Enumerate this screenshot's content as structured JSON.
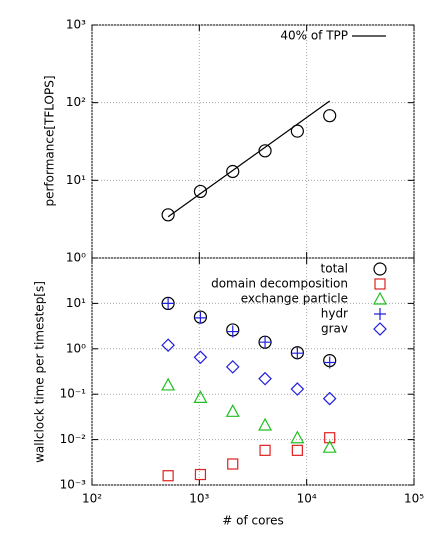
{
  "chart_data": [
    {
      "type": "scatter",
      "ylabel": "performance[TFLOPS]",
      "x": [
        512,
        1024,
        2048,
        4096,
        8192,
        16384
      ],
      "xlim": [
        100,
        100000
      ],
      "xticks": [
        100,
        1000,
        10000,
        100000
      ],
      "ylim": [
        1,
        1000
      ],
      "yticks": [
        {
          "value": 1,
          "label": "10⁰"
        },
        {
          "value": 10,
          "label": "10¹"
        },
        {
          "value": 100,
          "label": "10²"
        },
        {
          "value": 1000,
          "label": "10³"
        }
      ],
      "log_scale": true,
      "grid": true,
      "legend": "top-right",
      "series": [
        {
          "color": "#000000",
          "marker": "circle",
          "values": [
            3.6,
            7.2,
            13,
            24,
            43,
            68
          ]
        },
        {
          "name": "40% of TPP",
          "color": "#000000",
          "marker": "line",
          "x": [
            512,
            16384
          ],
          "values": [
            3.4,
            105
          ]
        }
      ]
    },
    {
      "type": "scatter",
      "xlabel": "# of cores",
      "ylabel": "wallclock time per timestep[s]",
      "x": [
        512,
        1024,
        2048,
        4096,
        8192,
        16384
      ],
      "xlim": [
        100,
        100000
      ],
      "xticks": [
        {
          "value": 100,
          "label": "10²"
        },
        {
          "value": 1000,
          "label": "10³"
        },
        {
          "value": 10000,
          "label": "10⁴"
        },
        {
          "value": 100000,
          "label": "10⁵"
        }
      ],
      "ylim": [
        0.001,
        100
      ],
      "yticks": [
        {
          "value": 0.001,
          "label": "10⁻³"
        },
        {
          "value": 0.01,
          "label": "10⁻²"
        },
        {
          "value": 0.1,
          "label": "10⁻¹"
        },
        {
          "value": 1,
          "label": "10⁰"
        },
        {
          "value": 10,
          "label": "10¹"
        }
      ],
      "log_scale": true,
      "grid": true,
      "legend": "top-right",
      "series": [
        {
          "name": "total",
          "color": "#000000",
          "marker": "circle",
          "values": [
            10,
            5.0,
            2.6,
            1.4,
            0.82,
            0.55
          ]
        },
        {
          "name": "domain decomposition",
          "color": "#e02020",
          "marker": "square",
          "values": [
            0.0016,
            0.0017,
            0.0029,
            0.0058,
            0.0058,
            0.011
          ]
        },
        {
          "name": "exchange particle",
          "color": "#20c020",
          "marker": "triangle",
          "values": [
            0.16,
            0.085,
            0.042,
            0.021,
            0.011,
            0.0068
          ]
        },
        {
          "name": "hydr",
          "color": "#2020e0",
          "marker": "plus",
          "values": [
            10,
            4.8,
            2.4,
            1.4,
            0.8,
            0.5
          ]
        },
        {
          "name": "grav",
          "color": "#2020e0",
          "marker": "diamond",
          "values": [
            1.2,
            0.65,
            0.4,
            0.22,
            0.13,
            0.08
          ]
        }
      ]
    }
  ]
}
